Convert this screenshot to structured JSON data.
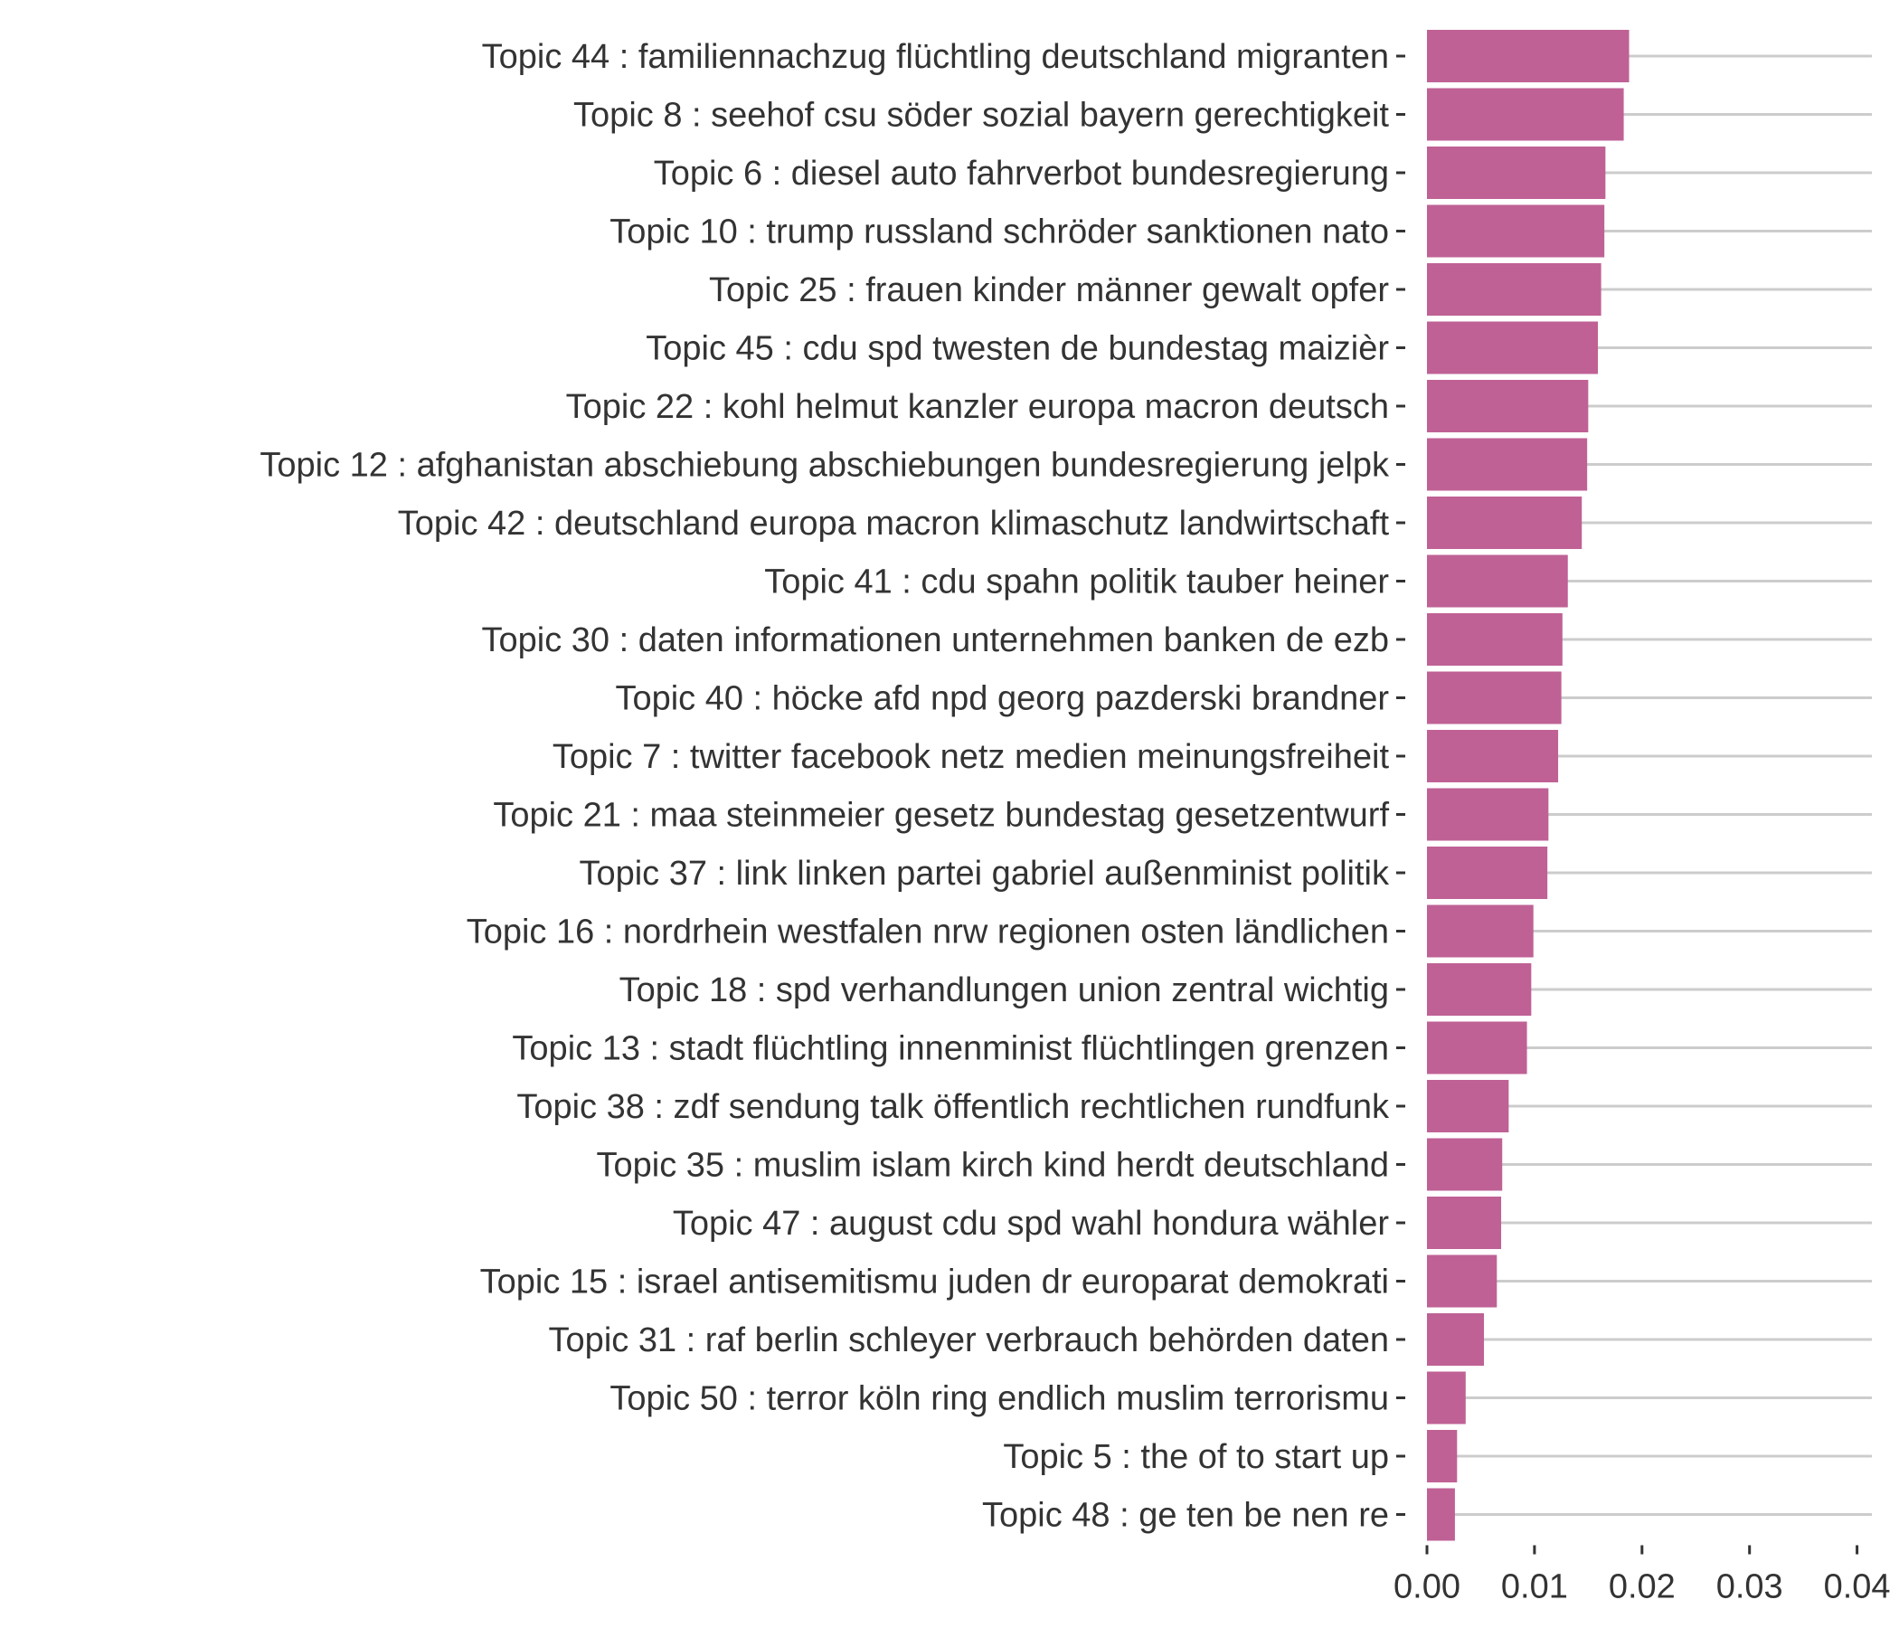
{
  "chart_data": {
    "type": "bar",
    "orientation": "horizontal",
    "title": "",
    "xlabel": "",
    "ylabel": "",
    "xlim": [
      0,
      0.04
    ],
    "x_ticks": [
      "0.00",
      "0.01",
      "0.02",
      "0.03",
      "0.04"
    ],
    "x_tick_values": [
      0,
      0.01,
      0.02,
      0.03,
      0.04
    ],
    "grid": "horizontal gridlines per category",
    "categories": [
      "Topic 44 : familiennachzug flüchtling deutschland migranten",
      "Topic 8 : seehof csu söder sozial bayern gerechtigkeit",
      "Topic 6 : diesel auto fahrverbot bundesregierung",
      "Topic 10 : trump russland schröder sanktionen nato",
      "Topic 25 : frauen kinder männer gewalt opfer",
      "Topic 45 : cdu spd twesten de bundestag maizièr",
      "Topic 22 : kohl helmut kanzler europa macron deutsch",
      "Topic 12 : afghanistan abschiebung abschiebungen bundesregierung jelpk",
      "Topic 42 : deutschland europa macron klimaschutz landwirtschaft",
      "Topic 41 : cdu spahn politik tauber heiner",
      "Topic 30 : daten informationen unternehmen banken de ezb",
      "Topic 40 : höcke afd npd georg pazderski brandner",
      "Topic 7 : twitter facebook netz medien meinungsfreiheit",
      "Topic 21 : maa steinmeier gesetz bundestag gesetzentwurf",
      "Topic 37 : link linken partei gabriel außenminist politik",
      "Topic 16 : nordrhein westfalen nrw regionen osten ländlichen",
      "Topic 18 : spd verhandlungen union zentral wichtig",
      "Topic 13 : stadt flüchtling innenminist flüchtlingen grenzen",
      "Topic 38 : zdf sendung talk öffentlich rechtlichen rundfunk",
      "Topic 35 : muslim islam kirch kind herdt deutschland",
      "Topic 47 : august cdu spd wahl hondura wähler",
      "Topic 15 : israel antisemitismu juden dr europarat demokrati",
      "Topic 31 : raf berlin schleyer verbrauch behörden daten",
      "Topic 50 : terror köln ring endlich muslim terrorismu",
      "Topic 5 : the of to start up",
      "Topic 48 : ge ten be nen re"
    ],
    "values": [
      0.0188,
      0.0183,
      0.0166,
      0.0165,
      0.0162,
      0.0159,
      0.015,
      0.0149,
      0.0144,
      0.0131,
      0.0126,
      0.0125,
      0.0122,
      0.0113,
      0.0112,
      0.0099,
      0.0097,
      0.0093,
      0.0076,
      0.007,
      0.0069,
      0.0065,
      0.0053,
      0.0036,
      0.0028,
      0.0026
    ],
    "bar_color": "#bf6195",
    "grid_color": "#cccccc",
    "text_color": "#333333"
  }
}
